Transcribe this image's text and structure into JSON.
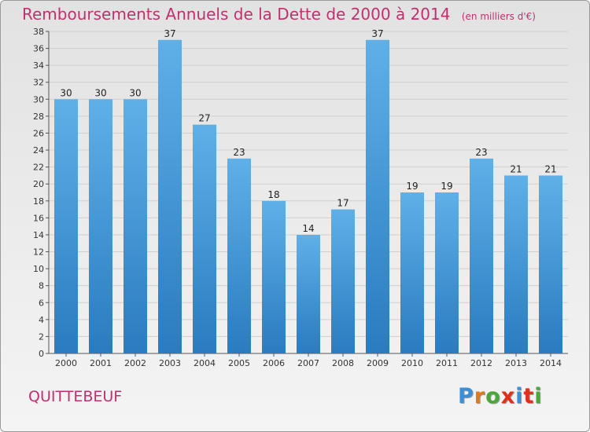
{
  "header": {
    "title": "Remboursements Annuels de la Dette de 2000 à 2014",
    "unit": "(en milliers d'€)"
  },
  "footer": {
    "commune": "QUITTEBEUF",
    "logo_letters": [
      "P",
      "r",
      "o",
      "x",
      "i",
      "t",
      "i"
    ]
  },
  "colors": {
    "title": "#c0306e",
    "bar_top": "#5fb0e8",
    "bar_bottom": "#2a7bc0",
    "logo": [
      "#3a8fd6",
      "#e07a1a",
      "#4aa83a",
      "#e0301a",
      "#3a8fd6",
      "#e0301a",
      "#4aa83a"
    ]
  },
  "chart_data": {
    "type": "bar",
    "title": "Remboursements Annuels de la Dette de 2000 à 2014",
    "ylabel": "en milliers d'€",
    "xlabel": "",
    "categories": [
      "2000",
      "2001",
      "2002",
      "2003",
      "2004",
      "2005",
      "2006",
      "2007",
      "2008",
      "2009",
      "2010",
      "2011",
      "2012",
      "2013",
      "2014"
    ],
    "values": [
      30,
      30,
      30,
      37,
      27,
      23,
      18,
      14,
      17,
      37,
      19,
      19,
      23,
      21,
      21
    ],
    "ylim": [
      0,
      38
    ],
    "yticks": [
      0,
      2,
      4,
      6,
      8,
      10,
      12,
      14,
      16,
      18,
      20,
      22,
      24,
      26,
      28,
      30,
      32,
      34,
      36,
      38
    ],
    "grid": true
  }
}
